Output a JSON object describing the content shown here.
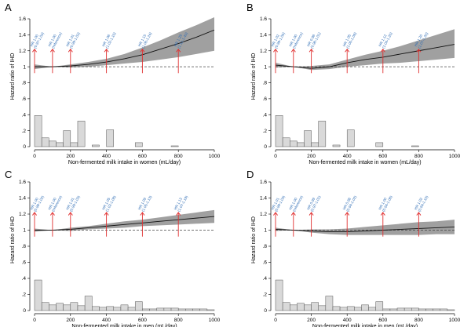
{
  "chart_data": [
    {
      "type": "line",
      "panel": "A",
      "xlabel": "Non-fermented milk intake in women (mL/day)",
      "ylabel": "Hazard ratio of IHD",
      "xlim": [
        0,
        1000
      ],
      "ylim": [
        0,
        1.6
      ],
      "x_ticks": [
        "0",
        "200",
        "400",
        "600",
        "800",
        "1000"
      ],
      "y_ticks": [
        "0",
        ".2",
        ".4",
        ".6",
        ".8",
        "1",
        "1.2",
        "1.4",
        "1.6"
      ],
      "curve": {
        "x": [
          0,
          100,
          200,
          300,
          400,
          500,
          600,
          700,
          800,
          900,
          1000
        ],
        "y": [
          1.0,
          1.0,
          1.01,
          1.03,
          1.06,
          1.1,
          1.15,
          1.22,
          1.29,
          1.37,
          1.46
        ],
        "lower": [
          0.97,
          1.0,
          0.99,
          1.0,
          1.02,
          1.04,
          1.06,
          1.09,
          1.12,
          1.16,
          1.2
        ],
        "upper": [
          1.03,
          1.0,
          1.03,
          1.06,
          1.1,
          1.16,
          1.24,
          1.33,
          1.43,
          1.52,
          1.62
        ]
      },
      "histogram": {
        "bin_width": 40,
        "start": 0,
        "values": [
          0.39,
          0.11,
          0.07,
          0.05,
          0.2,
          0.05,
          0.32,
          0,
          0.02,
          0,
          0.21,
          0,
          0,
          0,
          0.05,
          0,
          0,
          0,
          0,
          0.01
        ]
      },
      "annotations": [
        {
          "x": 0,
          "label": [
            "HR 1.00",
            "(0.97-1.03)"
          ]
        },
        {
          "x": 100,
          "label": [
            "HR 1.00",
            "(reference)"
          ]
        },
        {
          "x": 200,
          "label": [
            "HR 1.01",
            "(0.99-1.03)"
          ]
        },
        {
          "x": 400,
          "label": [
            "HR 1.06",
            "(1.02-1.10)"
          ]
        },
        {
          "x": 600,
          "label": [
            "HR 1.15",
            "(1.06-1.24)"
          ]
        },
        {
          "x": 800,
          "label": [
            "HR 1.29",
            "(1.12-1.43)"
          ]
        }
      ]
    },
    {
      "type": "line",
      "panel": "B",
      "xlabel": "Non-fermented milk intake in women (mL/day)",
      "ylabel": "Hazard ratio of IHD",
      "xlim": [
        0,
        1000
      ],
      "ylim": [
        0,
        1.6
      ],
      "x_ticks": [
        "0",
        "200",
        "400",
        "600",
        "800",
        "1000"
      ],
      "y_ticks": [
        "0",
        ".2",
        ".4",
        ".6",
        ".8",
        "1",
        "1.2",
        "1.4",
        "1.6"
      ],
      "curve": {
        "x": [
          0,
          100,
          200,
          300,
          400,
          500,
          600,
          700,
          800,
          900,
          1000
        ],
        "y": [
          1.02,
          1.0,
          0.98,
          1.0,
          1.05,
          1.09,
          1.12,
          1.16,
          1.2,
          1.24,
          1.28
        ],
        "lower": [
          0.99,
          1.0,
          0.96,
          0.97,
          1.0,
          1.02,
          1.04,
          1.05,
          1.07,
          1.09,
          1.11
        ],
        "upper": [
          1.05,
          1.0,
          1.01,
          1.03,
          1.09,
          1.15,
          1.2,
          1.26,
          1.33,
          1.4,
          1.47
        ]
      },
      "histogram": {
        "bin_width": 40,
        "start": 0,
        "values": [
          0.39,
          0.11,
          0.07,
          0.05,
          0.2,
          0.05,
          0.32,
          0,
          0.02,
          0,
          0.21,
          0,
          0,
          0,
          0.05,
          0,
          0,
          0,
          0,
          0.01
        ]
      },
      "annotations": [
        {
          "x": 0,
          "label": [
            "HR 1.02",
            "(0.99-1.05)"
          ]
        },
        {
          "x": 100,
          "label": [
            "HR 1.00",
            "(reference)"
          ]
        },
        {
          "x": 200,
          "label": [
            "HR 0.98",
            "(0.96-1.01)"
          ]
        },
        {
          "x": 400,
          "label": [
            "HR 1.05",
            "(1.00-1.09)"
          ]
        },
        {
          "x": 600,
          "label": [
            "HR 1.12",
            "(1.04-1.20)"
          ]
        },
        {
          "x": 800,
          "label": [
            "HR 1.20",
            "(1.07-1.33)"
          ]
        }
      ]
    },
    {
      "type": "line",
      "panel": "C",
      "xlabel": "Non-fermented milk intake in men (mL/day)",
      "ylabel": "Hazard ratio of IHD",
      "xlim": [
        0,
        1000
      ],
      "ylim": [
        0,
        1.6
      ],
      "x_ticks": [
        "0",
        "200",
        "400",
        "600",
        "800",
        "1000"
      ],
      "y_ticks": [
        "0",
        ".2",
        ".4",
        ".6",
        ".8",
        "1",
        "1.2",
        "1.4",
        "1.6"
      ],
      "curve": {
        "x": [
          0,
          100,
          200,
          300,
          400,
          500,
          600,
          700,
          800,
          900,
          1000
        ],
        "y": [
          1.0,
          1.0,
          1.01,
          1.03,
          1.05,
          1.07,
          1.09,
          1.11,
          1.13,
          1.15,
          1.17
        ],
        "lower": [
          0.98,
          1.0,
          0.99,
          1.01,
          1.02,
          1.03,
          1.05,
          1.06,
          1.07,
          1.08,
          1.09
        ],
        "upper": [
          1.02,
          1.0,
          1.03,
          1.05,
          1.08,
          1.11,
          1.13,
          1.16,
          1.19,
          1.22,
          1.25
        ]
      },
      "histogram": {
        "bin_width": 40,
        "start": 0,
        "values": [
          0.38,
          0.1,
          0.07,
          0.09,
          0.07,
          0.1,
          0.06,
          0.18,
          0.05,
          0.04,
          0.05,
          0.04,
          0.07,
          0.04,
          0.11,
          0.02,
          0.02,
          0.03,
          0.03,
          0.03,
          0.02,
          0.02,
          0.02,
          0.02,
          0.01
        ]
      },
      "annotations": [
        {
          "x": 0,
          "label": [
            "HR 1.00",
            "(0.98-1.02)"
          ]
        },
        {
          "x": 100,
          "label": [
            "HR 1.00",
            "(reference)"
          ]
        },
        {
          "x": 200,
          "label": [
            "HR 1.01",
            "(0.99-1.03)"
          ]
        },
        {
          "x": 400,
          "label": [
            "HR 1.05",
            "(1.02-1.08)"
          ]
        },
        {
          "x": 600,
          "label": [
            "HR 1.09",
            "(1.05-1.13)"
          ]
        },
        {
          "x": 800,
          "label": [
            "HR 1.13",
            "(1.07-1.19)"
          ]
        }
      ]
    },
    {
      "type": "line",
      "panel": "D",
      "xlabel": "Non-fermented milk intake in men (mL/day)",
      "ylabel": "Hazard ratio of IHD",
      "xlim": [
        0,
        1000
      ],
      "ylim": [
        0,
        1.6
      ],
      "x_ticks": [
        "0",
        "200",
        "400",
        "600",
        "800",
        "1000"
      ],
      "y_ticks": [
        "0",
        ".2",
        ".4",
        ".6",
        ".8",
        "1",
        "1.2",
        "1.4",
        "1.6"
      ],
      "curve": {
        "x": [
          0,
          100,
          200,
          300,
          400,
          500,
          600,
          700,
          800,
          900,
          1000
        ],
        "y": [
          1.01,
          1.0,
          0.99,
          0.98,
          0.98,
          0.99,
          1.0,
          1.01,
          1.02,
          1.03,
          1.04
        ],
        "lower": [
          0.99,
          1.0,
          0.97,
          0.95,
          0.94,
          0.94,
          0.94,
          0.94,
          0.94,
          0.95,
          0.95
        ],
        "upper": [
          1.03,
          1.0,
          1.01,
          1.01,
          1.02,
          1.04,
          1.06,
          1.08,
          1.1,
          1.11,
          1.13
        ]
      },
      "histogram": {
        "bin_width": 40,
        "start": 0,
        "values": [
          0.38,
          0.1,
          0.07,
          0.09,
          0.07,
          0.1,
          0.06,
          0.18,
          0.05,
          0.04,
          0.05,
          0.04,
          0.07,
          0.04,
          0.11,
          0.02,
          0.02,
          0.03,
          0.03,
          0.03,
          0.02,
          0.02,
          0.02,
          0.02,
          0.01
        ]
      },
      "annotations": [
        {
          "x": 0,
          "label": [
            "HR 1.01",
            "(0.99-1.03)"
          ]
        },
        {
          "x": 100,
          "label": [
            "HR 1.00",
            "(reference)"
          ]
        },
        {
          "x": 200,
          "label": [
            "HR 0.99",
            "(0.97-1.01)"
          ]
        },
        {
          "x": 400,
          "label": [
            "HR 0.98",
            "(0.94-1.02)"
          ]
        },
        {
          "x": 600,
          "label": [
            "HR 1.00",
            "(0.94-1.06)"
          ]
        },
        {
          "x": 800,
          "label": [
            "HR 1.02",
            "(0.94-1.10)"
          ]
        }
      ]
    }
  ],
  "colors": {
    "ci_band": "#8f8f8f",
    "curve": "#111111",
    "reference_line": "#444444",
    "arrow": "#e03030",
    "annotation_text": "#2f6db5",
    "bar_fill": "#d9d9d9",
    "bar_stroke": "#555555"
  }
}
